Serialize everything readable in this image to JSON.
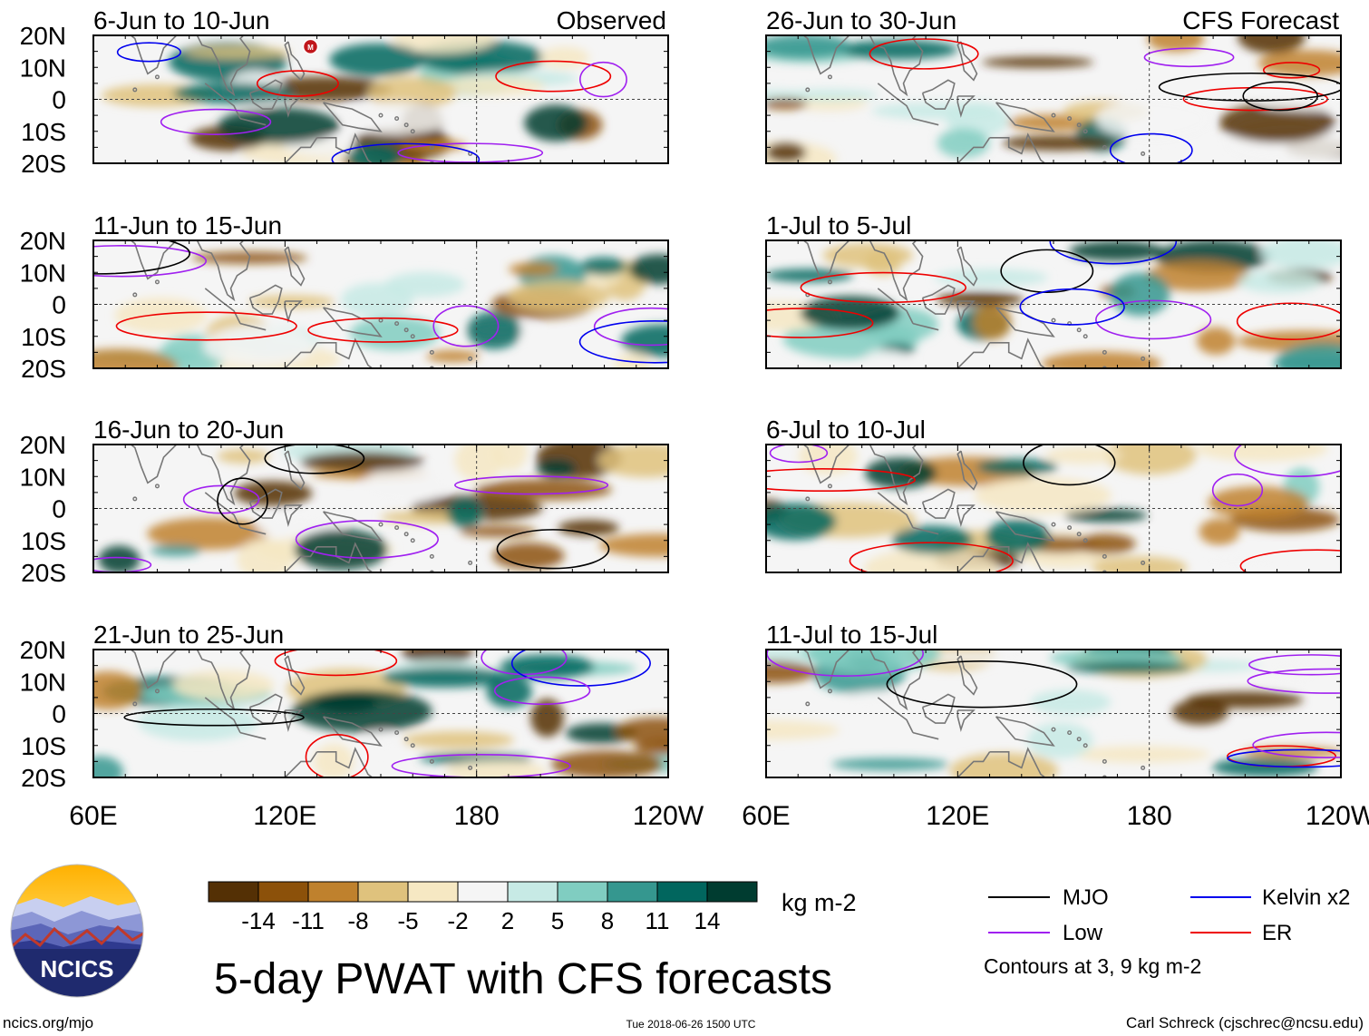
{
  "chart_data": {
    "type": "heatmap",
    "title": "5-day PWAT with CFS forecasts",
    "variable": "Precipitable water anomaly",
    "units": "kg m-2",
    "x_ticks": [
      "60E",
      "120E",
      "180",
      "120W"
    ],
    "y_ticks": [
      "20N",
      "10N",
      "0",
      "10S",
      "20S"
    ],
    "xlim_deg_east": [
      60,
      240
    ],
    "ylim_deg": [
      -20,
      20
    ],
    "columns": [
      {
        "label": "Observed",
        "panels": [
          "6-Jun to 10-Jun",
          "11-Jun to 15-Jun",
          "16-Jun to 20-Jun",
          "21-Jun to 25-Jun"
        ]
      },
      {
        "label": "CFS Forecast",
        "panels": [
          "26-Jun to 30-Jun",
          "1-Jul to 5-Jul",
          "6-Jul to 10-Jul",
          "11-Jul to 15-Jul"
        ]
      }
    ],
    "colorbar": {
      "levels": [
        "-14",
        "-11",
        "-8",
        "-5",
        "-2",
        "2",
        "5",
        "8",
        "11",
        "14"
      ],
      "colors": [
        "#543005",
        "#8c510a",
        "#bf812d",
        "#dfc27d",
        "#f6e8c3",
        "#f5f5f5",
        "#c7eae5",
        "#80cdc1",
        "#35978f",
        "#01665e",
        "#003c30"
      ]
    },
    "legend": [
      {
        "name": "MJO",
        "color": "#000000"
      },
      {
        "name": "Kelvin x2",
        "color": "#0000ee"
      },
      {
        "name": "Low",
        "color": "#a020f0"
      },
      {
        "name": "ER",
        "color": "#ee0000"
      }
    ],
    "contour_note": "Contours at 3, 9 kg m-2"
  },
  "logo": {
    "text": "NCICS"
  },
  "footer": {
    "left": "ncics.org/mjo",
    "center": "Tue 2018-06-26 1500 UTC",
    "right": "Carl Schreck (cjschrec@ncsu.edu)"
  }
}
